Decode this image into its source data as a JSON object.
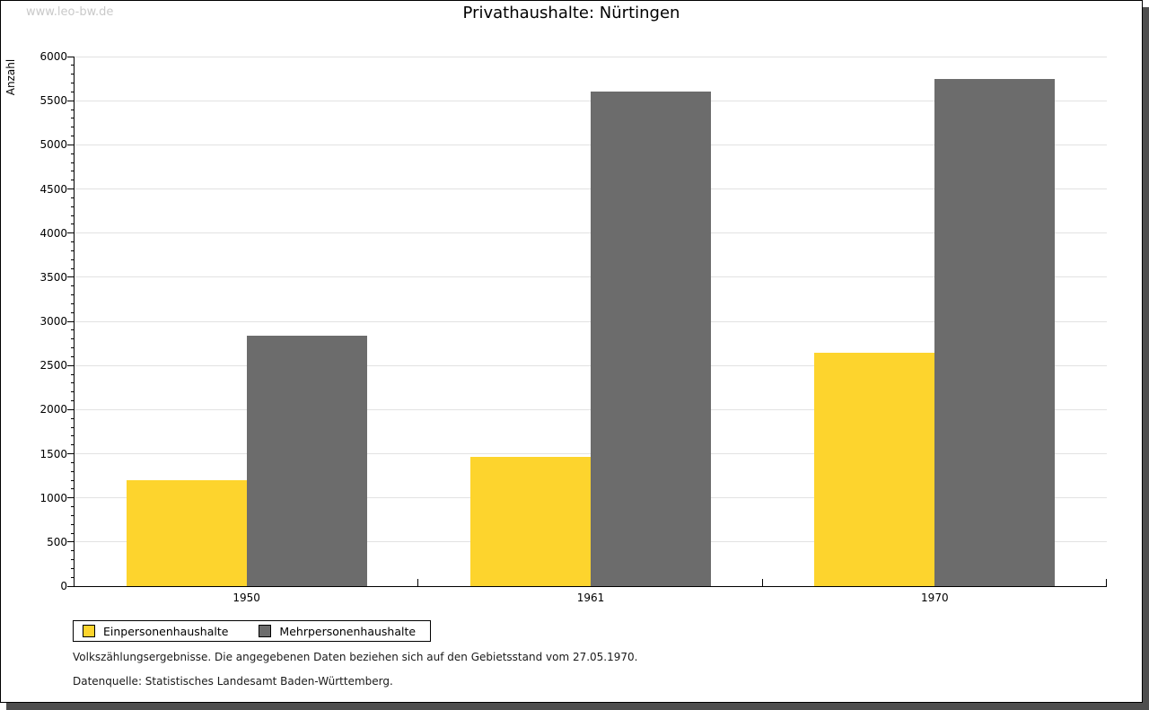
{
  "watermark": "www.leo-bw.de",
  "chart_data": {
    "type": "bar",
    "title": "Privathaushalte: Nürtingen",
    "ylabel": "Anzahl",
    "xlabel": "",
    "categories": [
      "1950",
      "1961",
      "1970"
    ],
    "series": [
      {
        "name": "Einpersonenhaushalte",
        "color": "#FDD42D",
        "values": [
          1200,
          1460,
          2640
        ]
      },
      {
        "name": "Mehrpersonenhaushalte",
        "color": "#6C6C6C",
        "values": [
          2840,
          5600,
          5750
        ]
      }
    ],
    "ylim": [
      0,
      6000
    ],
    "ytick_step": 500,
    "ytick_minor_step": 100,
    "yticks": [
      0,
      500,
      1000,
      1500,
      2000,
      2500,
      3000,
      3500,
      4000,
      4500,
      5000,
      5500,
      6000
    ],
    "grid": "horizontal major gridlines, light gray",
    "legend_position": "bottom-left"
  },
  "footnotes": [
    "Volkszählungsergebnisse. Die angegebenen Daten beziehen sich auf den Gebietsstand vom 27.05.1970.",
    "Datenquelle: Statistisches Landesamt Baden-Württemberg."
  ],
  "colors": {
    "bar_yellow": "#FDD42D",
    "bar_gray": "#6C6C6C",
    "gridline": "#E2E2E2",
    "frame_shadow": "#4E4E4E",
    "watermark": "#C9C9C9"
  }
}
